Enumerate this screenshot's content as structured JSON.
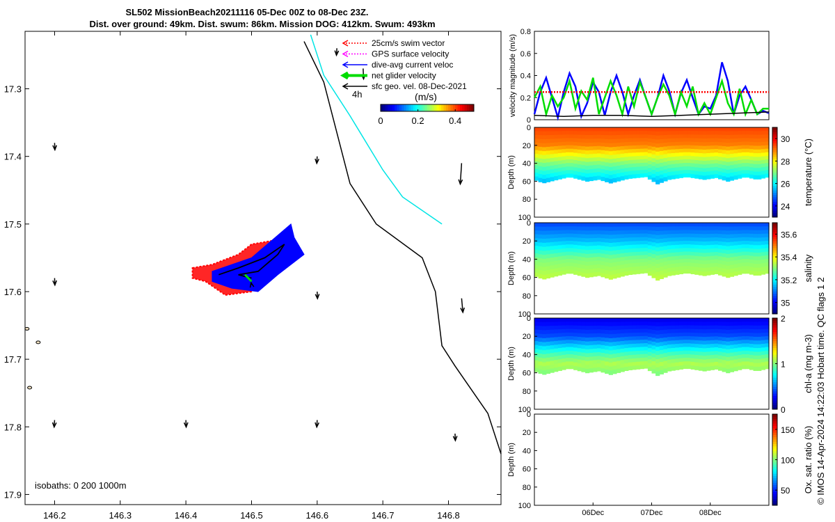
{
  "title": {
    "line1": "SL502 MissionBeach20211116 05-Dec 00Z to 08-Dec 23Z.",
    "line2": "Dist. over ground: 49km. Dist. swum: 86km. Mission DOG: 412km. Swum: 493km"
  },
  "colors": {
    "swim": "#ff0000",
    "gps": "#ff00ff",
    "dac": "#0000ff",
    "net": "#00dd00",
    "sfc": "#000000",
    "track": "#00e5e5"
  },
  "legend": {
    "items": [
      {
        "label": "25cm/s swim vector",
        "color": "#ff0000",
        "style": "dotted"
      },
      {
        "label": "GPS surface velocity",
        "color": "#ff00ff",
        "style": "dotted"
      },
      {
        "label": "dive-avg current veloc",
        "color": "#0000ff",
        "style": "solid"
      },
      {
        "label": "net glider velocity",
        "color": "#00dd00",
        "style": "thick"
      },
      {
        "label": "sfc geo. vel. 08-Dec-2021",
        "color": "#000000",
        "style": "solid"
      }
    ],
    "time_step": "4h"
  },
  "map_colorbar": {
    "unit": "(m/s)",
    "ticks": [
      "0",
      "0.2",
      "0.4"
    ],
    "range": [
      0,
      0.5
    ]
  },
  "map": {
    "x_ticks": [
      "146.2",
      "146.3",
      "146.4",
      "146.5",
      "146.6",
      "146.7",
      "146.8"
    ],
    "y_ticks": [
      "17.3",
      "17.4",
      "17.5",
      "17.6",
      "17.7",
      "17.8",
      "17.9"
    ],
    "xlim": [
      146.155,
      146.88
    ],
    "ylim": [
      17.915,
      17.215
    ],
    "isobath_note": "isobaths: 0   200  1000m",
    "coast": [
      [
        146.58,
        17.23
      ],
      [
        146.61,
        17.29
      ],
      [
        146.65,
        17.44
      ],
      [
        146.69,
        17.5
      ],
      [
        146.76,
        17.55
      ],
      [
        146.78,
        17.6
      ],
      [
        146.79,
        17.68
      ],
      [
        146.81,
        17.71
      ],
      [
        146.86,
        17.78
      ],
      [
        146.88,
        17.84
      ]
    ],
    "track": [
      [
        146.59,
        17.22
      ],
      [
        146.61,
        17.28
      ],
      [
        146.65,
        17.34
      ],
      [
        146.7,
        17.42
      ],
      [
        146.73,
        17.46
      ],
      [
        146.79,
        17.5
      ]
    ],
    "sfc_arrows": [
      [
        146.2,
        17.38,
        0.015
      ],
      [
        146.6,
        17.4,
        0.01
      ],
      [
        146.2,
        17.58,
        0.015
      ],
      [
        146.5,
        17.59,
        0.012
      ],
      [
        146.6,
        17.6,
        0.004
      ],
      [
        146.2,
        17.79,
        0.008
      ],
      [
        146.4,
        17.79,
        0.01
      ],
      [
        146.6,
        17.79,
        0.008
      ],
      [
        146.82,
        17.41,
        0.06
      ],
      [
        146.82,
        17.61,
        0.04
      ],
      [
        146.81,
        17.81,
        0.02
      ],
      [
        146.63,
        17.24,
        0.015
      ],
      [
        146.67,
        17.27,
        0.03
      ]
    ],
    "swim_cloud": [
      [
        146.41,
        17.565
      ],
      [
        146.44,
        17.56
      ],
      [
        146.48,
        17.545
      ],
      [
        146.5,
        17.53
      ],
      [
        146.53,
        17.525
      ],
      [
        146.55,
        17.545
      ],
      [
        146.5,
        17.6
      ],
      [
        146.46,
        17.605
      ],
      [
        146.43,
        17.585
      ],
      [
        146.41,
        17.58
      ]
    ],
    "dac_cloud": [
      [
        146.44,
        17.57
      ],
      [
        146.5,
        17.55
      ],
      [
        146.56,
        17.5
      ],
      [
        146.565,
        17.52
      ],
      [
        146.58,
        17.545
      ],
      [
        146.54,
        17.575
      ],
      [
        146.51,
        17.6
      ],
      [
        146.47,
        17.595
      ],
      [
        146.44,
        17.585
      ]
    ],
    "glider_track": [
      [
        146.45,
        17.575
      ],
      [
        146.48,
        17.565
      ],
      [
        146.52,
        17.55
      ],
      [
        146.55,
        17.53
      ],
      [
        146.54,
        17.545
      ],
      [
        146.51,
        17.57
      ],
      [
        146.48,
        17.575
      ],
      [
        146.5,
        17.58
      ]
    ],
    "net_track": [
      [
        146.49,
        17.575
      ],
      [
        146.5,
        17.585
      ]
    ]
  },
  "chart_data": [
    {
      "type": "line",
      "ylabel": "velocity magnitude (m/s)",
      "ylim": [
        0,
        0.8
      ],
      "y_ticks": [
        "0",
        "0.2",
        "0.4",
        "0.6",
        "0.8"
      ],
      "xlim": [
        0,
        4
      ],
      "series": [
        {
          "color": "#0000ff",
          "x": [
            0,
            0.1,
            0.2,
            0.3,
            0.4,
            0.5,
            0.6,
            0.7,
            0.8,
            0.9,
            1.0,
            1.1,
            1.2,
            1.3,
            1.4,
            1.5,
            1.6,
            1.7,
            1.8,
            1.9,
            2.0,
            2.1,
            2.2,
            2.3,
            2.4,
            2.5,
            2.6,
            2.7,
            2.8,
            2.9,
            3.0,
            3.1,
            3.2,
            3.3,
            3.4,
            3.5,
            3.6,
            3.7,
            3.8,
            3.9,
            4.0
          ],
          "values": [
            0.05,
            0.25,
            0.38,
            0.2,
            0.02,
            0.25,
            0.42,
            0.3,
            0.03,
            0.15,
            0.34,
            0.25,
            0.04,
            0.25,
            0.4,
            0.25,
            0.05,
            0.22,
            0.36,
            0.2,
            0.05,
            0.2,
            0.4,
            0.26,
            0.05,
            0.24,
            0.36,
            0.2,
            0.05,
            0.12,
            0.1,
            0.22,
            0.52,
            0.35,
            0.05,
            0.22,
            0.3,
            0.18,
            0.05,
            0.08,
            0.06
          ]
        },
        {
          "color": "#00dd00",
          "x": [
            0,
            0.1,
            0.2,
            0.3,
            0.4,
            0.5,
            0.6,
            0.7,
            0.8,
            0.9,
            1.0,
            1.1,
            1.2,
            1.3,
            1.4,
            1.5,
            1.6,
            1.7,
            1.8,
            1.9,
            2.0,
            2.1,
            2.2,
            2.3,
            2.4,
            2.5,
            2.6,
            2.7,
            2.8,
            2.9,
            3.0,
            3.1,
            3.2,
            3.3,
            3.4,
            3.5,
            3.6,
            3.7,
            3.8,
            3.9,
            4.0
          ],
          "values": [
            0.2,
            0.3,
            0.05,
            0.22,
            0.12,
            0.2,
            0.35,
            0.1,
            0.26,
            0.18,
            0.38,
            0.05,
            0.2,
            0.35,
            0.22,
            0.05,
            0.3,
            0.12,
            0.34,
            0.2,
            0.05,
            0.2,
            0.32,
            0.22,
            0.05,
            0.25,
            0.12,
            0.3,
            0.05,
            0.15,
            0.05,
            0.2,
            0.35,
            0.15,
            0.05,
            0.28,
            0.05,
            0.18,
            0.05,
            0.1,
            0.1
          ]
        },
        {
          "color": "#000000",
          "x": [
            0,
            0.5,
            1.0,
            1.5,
            2.0,
            2.5,
            3.0,
            3.5,
            4.0
          ],
          "values": [
            0.04,
            0.03,
            0.04,
            0.04,
            0.03,
            0.04,
            0.05,
            0.06,
            0.07
          ]
        },
        {
          "color": "#ff0000",
          "x": [
            0,
            4
          ],
          "values": [
            0.25,
            0.25
          ],
          "style": "dashed"
        }
      ]
    },
    {
      "type": "heatmap",
      "colorbar_label": "temperature (°C)",
      "ylabel": "Depth (m)",
      "ylim": [
        0,
        100
      ],
      "y_ticks": [
        "0",
        "20",
        "40",
        "60",
        "80",
        "100"
      ],
      "cbar_ticks": [
        "24",
        "26",
        "28",
        "30"
      ],
      "cbar_range": [
        23,
        31
      ],
      "x_ticks": [],
      "bottom_depth": [
        [
          0,
          58
        ],
        [
          0.15,
          62
        ],
        [
          0.4,
          58
        ],
        [
          0.6,
          55
        ],
        [
          0.9,
          60
        ],
        [
          1.1,
          58
        ],
        [
          1.3,
          62
        ],
        [
          1.6,
          57
        ],
        [
          1.9,
          55
        ],
        [
          2.1,
          63
        ],
        [
          2.3,
          58
        ],
        [
          2.6,
          55
        ],
        [
          2.9,
          58
        ],
        [
          3.1,
          56
        ],
        [
          3.3,
          60
        ],
        [
          3.6,
          55
        ],
        [
          3.8,
          58
        ],
        [
          4.0,
          55
        ]
      ],
      "profile": [
        [
          0,
          29.5
        ],
        [
          20,
          29
        ],
        [
          40,
          27
        ],
        [
          60,
          25.5
        ]
      ]
    },
    {
      "type": "heatmap",
      "colorbar_label": "salinity",
      "ylabel": "Depth (m)",
      "ylim": [
        0,
        100
      ],
      "y_ticks": [
        "0",
        "20",
        "40",
        "60",
        "80",
        "100"
      ],
      "cbar_ticks": [
        "35",
        "35.2",
        "35.4",
        "35.6"
      ],
      "cbar_range": [
        34.9,
        35.7
      ],
      "x_ticks": [],
      "bottom_depth": [
        [
          0,
          58
        ],
        [
          0.15,
          62
        ],
        [
          0.4,
          58
        ],
        [
          0.6,
          55
        ],
        [
          0.9,
          60
        ],
        [
          1.1,
          58
        ],
        [
          1.3,
          62
        ],
        [
          1.6,
          57
        ],
        [
          1.9,
          55
        ],
        [
          2.1,
          63
        ],
        [
          2.3,
          58
        ],
        [
          2.6,
          55
        ],
        [
          2.9,
          58
        ],
        [
          3.1,
          56
        ],
        [
          3.3,
          60
        ],
        [
          3.6,
          55
        ],
        [
          3.8,
          58
        ],
        [
          4.0,
          55
        ]
      ],
      "profile": [
        [
          0,
          35.05
        ],
        [
          20,
          35.15
        ],
        [
          40,
          35.3
        ],
        [
          60,
          35.35
        ]
      ]
    },
    {
      "type": "heatmap",
      "colorbar_label": "chl-a (mg m-3)",
      "ylabel": "Depth (m)",
      "ylim": [
        0,
        100
      ],
      "y_ticks": [
        "0",
        "20",
        "40",
        "60",
        "80",
        "100"
      ],
      "cbar_ticks": [
        "0",
        "1",
        "2"
      ],
      "cbar_range": [
        0,
        2
      ],
      "x_ticks": [],
      "bottom_depth": [
        [
          0,
          58
        ],
        [
          0.15,
          62
        ],
        [
          0.4,
          58
        ],
        [
          0.6,
          55
        ],
        [
          0.9,
          60
        ],
        [
          1.1,
          58
        ],
        [
          1.3,
          62
        ],
        [
          1.6,
          57
        ],
        [
          1.9,
          55
        ],
        [
          2.1,
          63
        ],
        [
          2.3,
          58
        ],
        [
          2.6,
          55
        ],
        [
          2.9,
          58
        ],
        [
          3.1,
          56
        ],
        [
          3.3,
          60
        ],
        [
          3.6,
          55
        ],
        [
          3.8,
          58
        ],
        [
          4.0,
          55
        ]
      ],
      "profile": [
        [
          0,
          0.2
        ],
        [
          20,
          0.4
        ],
        [
          40,
          0.9
        ],
        [
          50,
          1.1
        ],
        [
          60,
          1.0
        ]
      ]
    },
    {
      "type": "heatmap",
      "colorbar_label": "Ox. sat. ratio (%)",
      "ylabel": "Depth (m)",
      "ylim": [
        0,
        100
      ],
      "y_ticks": [
        "0",
        "20",
        "40",
        "60",
        "80",
        "100"
      ],
      "cbar_ticks": [
        "50",
        "100",
        "150"
      ],
      "cbar_range": [
        25,
        175
      ],
      "x_ticks": [
        "06Dec",
        "07Dec",
        "08Dec"
      ],
      "x_tick_pos": [
        1,
        2,
        3
      ]
    }
  ],
  "footer": "© IMOS 14-Apr-2024 14:22:03 Hobart time. QC flags 1  2"
}
